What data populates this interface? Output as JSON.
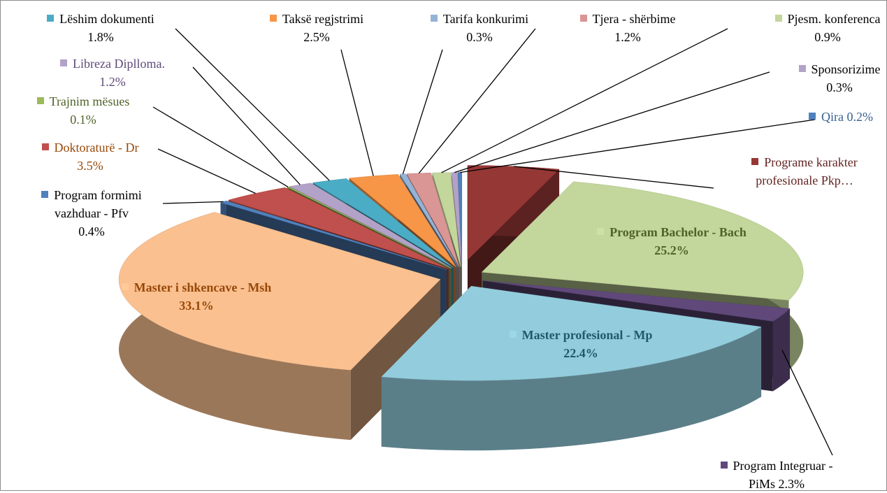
{
  "chart_data": {
    "type": "pie",
    "categories": [
      "Programe karakter profesionale Pkp…",
      "Program Bachelor - Bach",
      "Program Integruar - PiMs",
      "Master profesional - Mp",
      "Master i shkencave - Msh",
      "Program formimi vazhduar - Pfv",
      "Doktoraturë - Dr",
      "Trajnim mësues",
      "Libreza Diplloma.",
      "Lëshim dokumenti",
      "Taksë regjstrimi",
      "Tarifa konkurimi",
      "Tjera - shërbime",
      "Pjesm. konferenca",
      "Sponsorizime",
      "Qira"
    ],
    "values": [
      4.6,
      25.2,
      2.3,
      22.4,
      33.1,
      0.4,
      3.5,
      0.1,
      1.2,
      1.8,
      2.5,
      0.3,
      1.2,
      0.9,
      0.3,
      0.2
    ],
    "value_labels": [
      null,
      "25.2%",
      "2.3%",
      "22.4%",
      "33.1%",
      "0.4%",
      "3.5%",
      "0.1%",
      "1.2%",
      "1.8%",
      "2.5%",
      "0.3%",
      "1.2%",
      "0.9%",
      "0.3%",
      "0.2%"
    ],
    "colors": [
      "#953735",
      "#c3d69b",
      "#60497a",
      "#93cddd",
      "#fac090",
      "#4f81bd",
      "#c0504d",
      "#9bbb59",
      "#b3a2c7",
      "#4bacc6",
      "#f79646",
      "#95b3d7",
      "#d99694",
      "#c3d69b",
      "#b3a2c7",
      "#4f81bd"
    ]
  }
}
